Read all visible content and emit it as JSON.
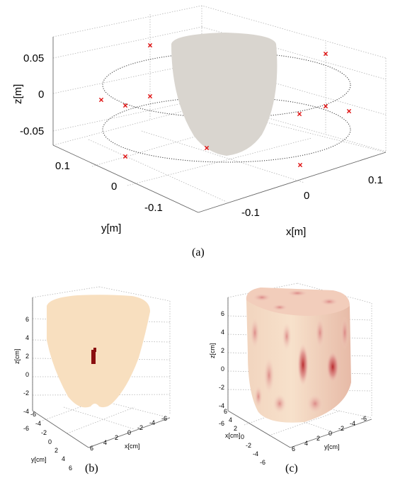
{
  "chart_data": [
    {
      "type": "scatter",
      "panel": "(a)",
      "xlabel": "x[m]",
      "ylabel": "y[m]",
      "zlabel": "z[m]",
      "xticks": [
        "-0.1",
        "0",
        "0.1"
      ],
      "yticks": [
        "0.1",
        "0",
        "-0.1"
      ],
      "zticks": [
        "0.05",
        "0",
        "-0.05"
      ],
      "sensor_rings": 2,
      "sensor_marker": "x",
      "sensor_color": "#e01010",
      "object_color": "#d9d5cf"
    },
    {
      "type": "heatmap",
      "panel": "(b)",
      "xlabel": "x[cm]",
      "ylabel": "y[cm]",
      "zlabel": "z[cm]",
      "xticks": [
        "6",
        "4",
        "2",
        "0",
        "-2",
        "-4",
        "-6"
      ],
      "yticks": [
        "-6",
        "-4",
        "-2",
        "0",
        "2",
        "4",
        "6"
      ],
      "zticks": [
        "6",
        "4",
        "2",
        "0",
        "-2",
        "-4",
        "-6"
      ],
      "base_color": "#f8dfbf",
      "focus_color": "#8a0f0f"
    },
    {
      "type": "heatmap",
      "panel": "(c)",
      "xlabel": "x[cm]",
      "ylabel": "y[cm]",
      "zlabel": "z[cm]",
      "xticks": [
        "6",
        "4",
        "2",
        "0",
        "-2",
        "-4",
        "-6"
      ],
      "yticks": [
        "6",
        "4",
        "2",
        "0",
        "-2",
        "-4",
        "-6"
      ],
      "zticks": [
        "6",
        "4",
        "2",
        "0",
        "-2",
        "-4",
        "-6"
      ],
      "base_color": "#f7e3c9",
      "high_color": "#a0141a"
    }
  ],
  "captions": {
    "a": "(a)",
    "b": "(b)",
    "c": "(c)"
  }
}
